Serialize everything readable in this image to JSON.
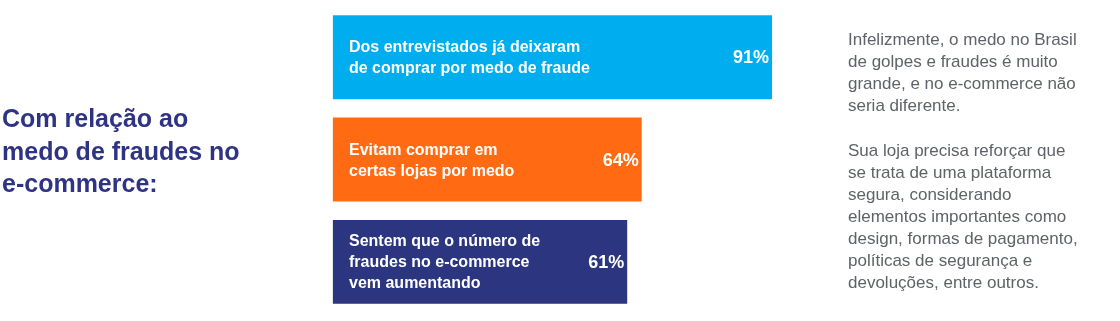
{
  "chart_data": {
    "type": "bar",
    "orientation": "horizontal",
    "title": "Com relação ao\nmedo de fraudes no\ne-commerce:",
    "categories": [
      "Dos entrevistados já deixaram\nde comprar por medo de fraude",
      "Evitam comprar em\ncertas lojas por medo",
      "Sentem que o número de\nfraudes no e-commerce\nvem aumentando"
    ],
    "values": [
      91,
      64,
      61
    ],
    "colors": [
      "#00aeef",
      "#ff6a13",
      "#2b3580"
    ],
    "value_labels": [
      "91%",
      "64%",
      "61%"
    ],
    "tick_labels": false,
    "annotations": [
      "Infelizmente, o medo no Brasil\nde golpes e fraudes é muito\ngrande, e no e-commerce não\nseria diferente.\n\nSua loja precisa reforçar que\nse trata de uma plataforma\nsegura, considerando\nelementos importantes como\ndesign, formas de pagamento,\npolíticas de segurança e\ndevoluções, entre outros."
    ]
  }
}
